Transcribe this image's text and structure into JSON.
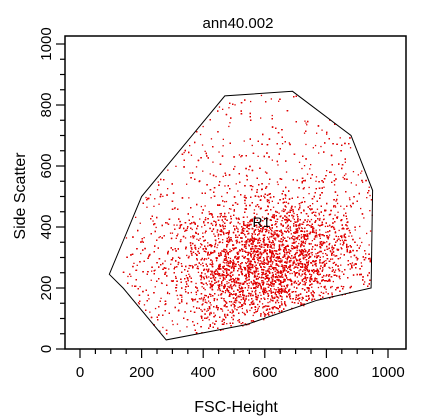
{
  "chart_data": {
    "type": "scatter",
    "title": "ann40.002",
    "xlabel": "FSC-Height",
    "ylabel": "Side Scatter",
    "xlim": [
      0,
      1024
    ],
    "ylim": [
      0,
      1024
    ],
    "x_ticks": [
      0,
      200,
      400,
      600,
      800,
      1000
    ],
    "y_ticks": [
      0,
      200,
      400,
      600,
      800,
      1000
    ],
    "x_tick_labels": [
      "0",
      "200",
      "400",
      "600",
      "800",
      "1000"
    ],
    "y_tick_labels": [
      "0",
      "200",
      "400",
      "600",
      "800",
      "1000"
    ],
    "point_color": "#e00000",
    "point_count_estimate": 9000,
    "density_center": [
      600,
      280
    ],
    "region": {
      "label": "R1",
      "label_position": [
        560,
        400
      ],
      "vertices": [
        [
          95,
          245
        ],
        [
          200,
          500
        ],
        [
          470,
          830
        ],
        [
          690,
          845
        ],
        [
          880,
          700
        ],
        [
          950,
          520
        ],
        [
          945,
          200
        ],
        [
          770,
          160
        ],
        [
          540,
          80
        ],
        [
          280,
          30
        ],
        [
          140,
          200
        ]
      ]
    },
    "grid": false
  }
}
